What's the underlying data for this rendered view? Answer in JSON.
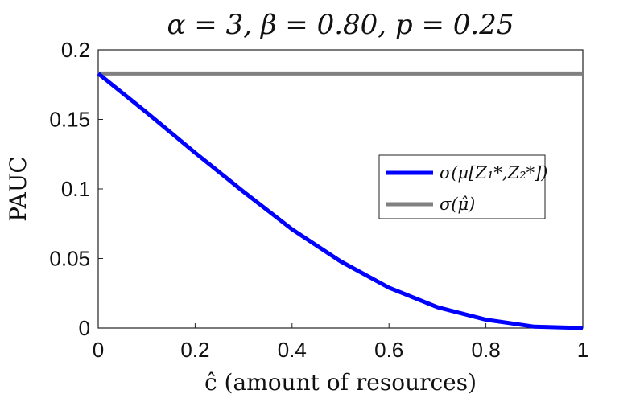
{
  "chart_data": {
    "type": "line",
    "title": "α = 3, β = 0.80, p = 0.25",
    "xlabel": "ĉ (amount of resources)",
    "ylabel": "PAUC",
    "xlim": [
      0,
      1
    ],
    "ylim": [
      0,
      0.2
    ],
    "xticks": [
      "0",
      "0.2",
      "0.4",
      "0.6",
      "0.8",
      "1"
    ],
    "yticks": [
      "0",
      "0.05",
      "0.1",
      "0.15",
      "0.2"
    ],
    "grid": false,
    "legend_position": "center-right",
    "series": [
      {
        "name": "σ(μ[Z₁*,Z₂*])",
        "color": "#0000ff",
        "x": [
          0,
          0.1,
          0.2,
          0.3,
          0.4,
          0.5,
          0.6,
          0.7,
          0.8,
          0.9,
          1.0
        ],
        "y": [
          0.183,
          0.155,
          0.126,
          0.098,
          0.071,
          0.048,
          0.029,
          0.015,
          0.006,
          0.001,
          0.0
        ]
      },
      {
        "name": "σ(μ̂)",
        "color": "#808080",
        "x": [
          0,
          1
        ],
        "y": [
          0.183,
          0.183
        ]
      }
    ]
  }
}
